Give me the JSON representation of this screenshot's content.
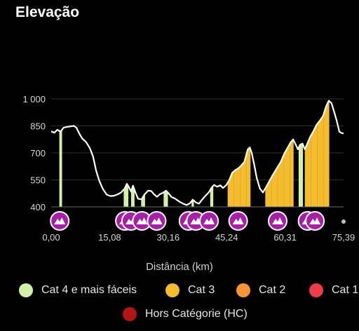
{
  "title": "Elevação",
  "chart_data": {
    "type": "area",
    "xlabel": "Distância (km)",
    "xlim": [
      0,
      75.39
    ],
    "ylim": [
      400,
      1000
    ],
    "yticks": [
      400,
      550,
      700,
      850,
      1000
    ],
    "ytick_labels": [
      "400",
      "550",
      "700",
      "850",
      "1 000"
    ],
    "xticks": [
      0,
      15.08,
      30.16,
      45.24,
      60.31,
      75.39
    ],
    "xtick_labels": [
      "0,00",
      "15,08",
      "30,16",
      "45,24",
      "60,31",
      "75,39"
    ],
    "grid": true,
    "profile": [
      [
        0,
        820
      ],
      [
        0.8,
        812
      ],
      [
        1.6,
        828
      ],
      [
        2.4,
        818
      ],
      [
        3.2,
        840
      ],
      [
        4.2,
        845
      ],
      [
        5.2,
        848
      ],
      [
        5.9,
        850
      ],
      [
        6.5,
        840
      ],
      [
        7.2,
        810
      ],
      [
        8.0,
        780
      ],
      [
        9.0,
        760
      ],
      [
        10.0,
        725
      ],
      [
        10.8,
        680
      ],
      [
        11.6,
        600
      ],
      [
        12.4,
        545
      ],
      [
        13.3,
        500
      ],
      [
        14.3,
        468
      ],
      [
        15.3,
        460
      ],
      [
        16.2,
        462
      ],
      [
        17.2,
        470
      ],
      [
        18.0,
        480
      ],
      [
        18.9,
        500
      ],
      [
        19.5,
        528
      ],
      [
        20.0,
        512
      ],
      [
        20.6,
        485
      ],
      [
        21.1,
        518
      ],
      [
        21.7,
        482
      ],
      [
        22.4,
        445
      ],
      [
        23.3,
        442
      ],
      [
        24.1,
        470
      ],
      [
        25.0,
        490
      ],
      [
        25.8,
        488
      ],
      [
        26.5,
        470
      ],
      [
        27.3,
        456
      ],
      [
        28.0,
        470
      ],
      [
        28.8,
        478
      ],
      [
        29.6,
        490
      ],
      [
        30.3,
        475
      ],
      [
        31.0,
        455
      ],
      [
        32.0,
        445
      ],
      [
        33.0,
        430
      ],
      [
        34.0,
        418
      ],
      [
        34.9,
        410
      ],
      [
        35.8,
        420
      ],
      [
        36.5,
        440
      ],
      [
        37.3,
        425
      ],
      [
        38.1,
        418
      ],
      [
        38.9,
        440
      ],
      [
        39.7,
        460
      ],
      [
        40.6,
        480
      ],
      [
        41.3,
        505
      ],
      [
        42.0,
        522
      ],
      [
        42.8,
        512
      ],
      [
        43.6,
        520
      ],
      [
        44.3,
        505
      ],
      [
        45.1,
        520
      ],
      [
        45.9,
        548
      ],
      [
        46.7,
        590
      ],
      [
        47.5,
        605
      ],
      [
        48.3,
        615
      ],
      [
        49.0,
        630
      ],
      [
        49.8,
        650
      ],
      [
        50.7,
        720
      ],
      [
        51.2,
        730
      ],
      [
        51.7,
        700
      ],
      [
        52.4,
        630
      ],
      [
        53.0,
        560
      ],
      [
        53.8,
        502
      ],
      [
        54.6,
        480
      ],
      [
        55.4,
        510
      ],
      [
        56.3,
        545
      ],
      [
        57.2,
        580
      ],
      [
        58.2,
        615
      ],
      [
        59.2,
        650
      ],
      [
        60.2,
        700
      ],
      [
        61.0,
        730
      ],
      [
        61.8,
        760
      ],
      [
        62.4,
        775
      ],
      [
        63.0,
        748
      ],
      [
        63.6,
        720
      ],
      [
        64.2,
        745
      ],
      [
        64.8,
        752
      ],
      [
        65.4,
        720
      ],
      [
        66.1,
        755
      ],
      [
        66.8,
        790
      ],
      [
        67.6,
        820
      ],
      [
        68.4,
        855
      ],
      [
        69.3,
        880
      ],
      [
        70.1,
        905
      ],
      [
        70.9,
        960
      ],
      [
        71.6,
        990
      ],
      [
        72.3,
        975
      ],
      [
        73.0,
        925
      ],
      [
        73.6,
        880
      ],
      [
        74.3,
        818
      ],
      [
        74.9,
        810
      ],
      [
        75.39,
        808
      ]
    ],
    "climbs": [
      {
        "category": "Cat 4 e mais fáceis",
        "from": 2.1,
        "to": 2.8
      },
      {
        "category": "Cat 4 e mais fáceis",
        "from": 18.7,
        "to": 19.9
      },
      {
        "category": "Cat 4 e mais fáceis",
        "from": 20.6,
        "to": 21.5
      },
      {
        "category": "Cat 4 e mais fáceis",
        "from": 23.2,
        "to": 24.2
      },
      {
        "category": "Cat 4 e mais fáceis",
        "from": 29.0,
        "to": 30.1
      },
      {
        "category": "Cat 4 e mais fáceis",
        "from": 36.2,
        "to": 36.8
      },
      {
        "category": "Cat 4 e mais fáceis",
        "from": 41.0,
        "to": 41.8
      },
      {
        "category": "Cat 3",
        "from": 45.5,
        "to": 51.4
      },
      {
        "category": "Cat 3",
        "from": 55.2,
        "to": 62.5
      },
      {
        "category": "Cat 4 e mais fáceis",
        "from": 63.8,
        "to": 64.9
      },
      {
        "category": "Cat 3",
        "from": 65.4,
        "to": 71.7
      }
    ],
    "climb_markers": [
      2.2,
      19.0,
      20.6,
      23.4,
      27.2,
      35.4,
      37.3,
      40.7,
      48.2,
      58.4,
      66.1,
      68.0
    ],
    "colors": {
      "Cat 4 e mais fáceis": "#d4f0a6",
      "Cat 3": "#f4bc2e",
      "Cat 2": "#f79436",
      "Cat 1": "#ee3d4a",
      "Hors Catégorie (HC)": "#b31414",
      "marker": "#a61fa6",
      "line": "#ffffff",
      "grid": "#2e2e2e",
      "axis": "#6a6a6a"
    }
  },
  "legend": [
    {
      "label": "Cat 4 e mais fáceis",
      "color": "#d4f0a6"
    },
    {
      "label": "Cat 3",
      "color": "#f4bc2e"
    },
    {
      "label": "Cat 2",
      "color": "#f79436"
    },
    {
      "label": "Cat 1",
      "color": "#ee3d4a"
    },
    {
      "label": "Hors Catégorie (HC)",
      "color": "#b31414"
    }
  ]
}
